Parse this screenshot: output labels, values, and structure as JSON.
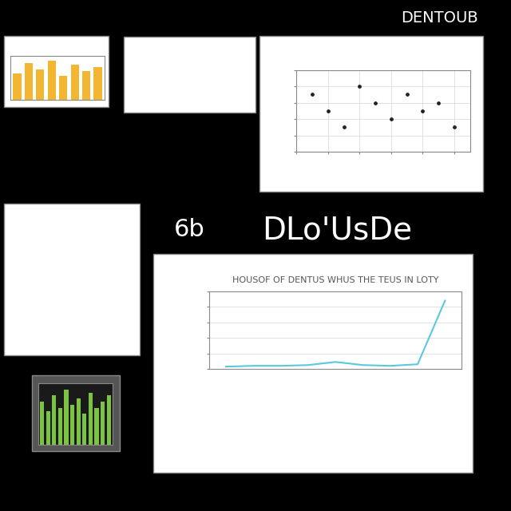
{
  "texts": [
    "6b",
    "DLo'UsDe",
    "DENTOUB"
  ],
  "chart_data": [
    {
      "type": "line",
      "title": "HOUSOF OF DENTUS WHUS THE TEUS IN LOTY",
      "categories": [
        null,
        null,
        null,
        null,
        null,
        null,
        null,
        null,
        null
      ],
      "values": [
        3,
        4,
        4,
        5,
        9,
        5,
        4,
        6,
        88
      ],
      "color": "#5bc8e0",
      "ylim": [
        0,
        100
      ],
      "yticks": [
        0,
        20,
        40,
        60,
        80,
        100
      ],
      "grid": true,
      "tick_labels": false
    },
    {
      "type": "bar",
      "categories": [
        null,
        null,
        null,
        null,
        null,
        null,
        null,
        null
      ],
      "values": [
        60,
        85,
        70,
        90,
        55,
        80,
        65,
        75
      ],
      "color": "#f2b630",
      "ylim": [
        0,
        100
      ],
      "tick_labels": false
    },
    {
      "type": "scatter",
      "x": [
        1,
        2,
        3,
        4,
        5,
        6,
        7,
        8,
        9,
        10
      ],
      "values": [
        7,
        5,
        3,
        8,
        6,
        4,
        7,
        5,
        6,
        3
      ],
      "color": "#222222",
      "xlim": [
        0,
        11
      ],
      "ylim": [
        0,
        10
      ],
      "xticks": [
        0,
        2,
        4,
        6,
        8,
        10
      ],
      "yticks": [
        0,
        2,
        4,
        6,
        8,
        10
      ],
      "grid": true,
      "tick_labels": false
    },
    {
      "type": "bar",
      "categories": [
        null,
        null,
        null,
        null,
        null,
        null,
        null,
        null,
        null,
        null,
        null,
        null
      ],
      "values": [
        70,
        55,
        80,
        60,
        90,
        65,
        75,
        50,
        85,
        60,
        70,
        80
      ],
      "color": "#7cc243",
      "ylim": [
        0,
        100
      ],
      "tick_labels": false
    }
  ]
}
